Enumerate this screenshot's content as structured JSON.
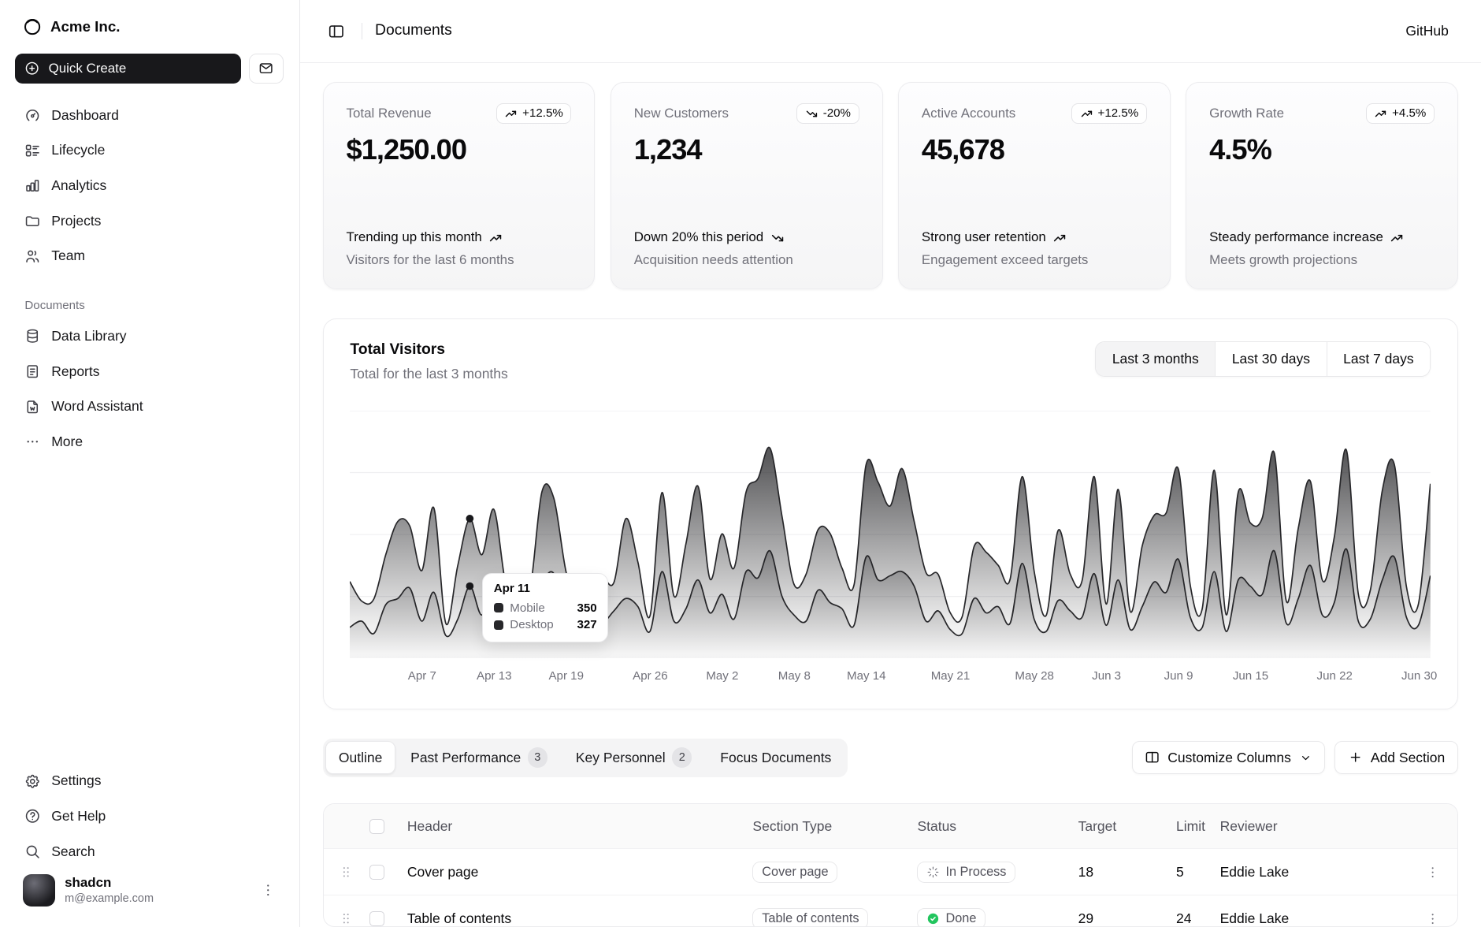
{
  "colors": {
    "primary": "#18181b",
    "done_green": "#22c55e",
    "muted_text": "#71717a",
    "border": "#e4e4e7"
  },
  "sidebar": {
    "brand": {
      "name": "Acme Inc.",
      "icon": "logo-icon"
    },
    "quick_create_label": "Quick Create",
    "nav": [
      {
        "label": "Dashboard",
        "icon": "dashboard-icon"
      },
      {
        "label": "Lifecycle",
        "icon": "lifecycle-icon"
      },
      {
        "label": "Analytics",
        "icon": "analytics-icon"
      },
      {
        "label": "Projects",
        "icon": "folder-icon"
      },
      {
        "label": "Team",
        "icon": "users-icon"
      }
    ],
    "section_label": "Documents",
    "documents_nav": [
      {
        "label": "Data Library",
        "icon": "database-icon"
      },
      {
        "label": "Reports",
        "icon": "report-icon"
      },
      {
        "label": "Word Assistant",
        "icon": "file-word-icon"
      },
      {
        "label": "More",
        "icon": "ellipsis-icon"
      }
    ],
    "footer_nav": [
      {
        "label": "Settings",
        "icon": "gear-icon"
      },
      {
        "label": "Get Help",
        "icon": "help-icon"
      },
      {
        "label": "Search",
        "icon": "search-icon"
      }
    ],
    "user": {
      "name": "shadcn",
      "email": "m@example.com"
    }
  },
  "header": {
    "title": "Documents",
    "link": "GitHub"
  },
  "stat_cards": [
    {
      "label": "Total Revenue",
      "badge": "+12.5%",
      "trend": "up",
      "value": "$1,250.00",
      "footer_title": "Trending up this month",
      "footer_desc": "Visitors for the last 6 months"
    },
    {
      "label": "New Customers",
      "badge": "-20%",
      "trend": "down",
      "value": "1,234",
      "footer_title": "Down 20% this period",
      "footer_desc": "Acquisition needs attention"
    },
    {
      "label": "Active Accounts",
      "badge": "+12.5%",
      "trend": "up",
      "value": "45,678",
      "footer_title": "Strong user retention",
      "footer_desc": "Engagement exceed targets"
    },
    {
      "label": "Growth Rate",
      "badge": "+4.5%",
      "trend": "up",
      "value": "4.5%",
      "footer_title": "Steady performance increase",
      "footer_desc": "Meets growth projections"
    }
  ],
  "chart": {
    "title": "Total Visitors",
    "subtitle": "Total for the last 3 months",
    "ranges": [
      "Last 3 months",
      "Last 30 days",
      "Last 7 days"
    ],
    "selected_range": "Last 3 months",
    "tooltip": {
      "date": "Apr 11",
      "rows": [
        {
          "label": "Mobile",
          "value": "350"
        },
        {
          "label": "Desktop",
          "value": "327"
        }
      ]
    }
  },
  "chart_data": {
    "type": "area",
    "title": "Total Visitors",
    "stacked": true,
    "curve": "natural",
    "grid": "horizontal-faint",
    "ylim": [
      0,
      1200
    ],
    "grid_values": [
      300,
      600,
      900,
      1200
    ],
    "x_tick_labels": [
      "Apr 7",
      "Apr 13",
      "Apr 19",
      "Apr 26",
      "May 2",
      "May 8",
      "May 14",
      "May 21",
      "May 28",
      "Jun 3",
      "Jun 9",
      "Jun 15",
      "Jun 22",
      "Jun 30"
    ],
    "x_tick_indices": [
      6,
      12,
      18,
      25,
      31,
      37,
      43,
      50,
      57,
      63,
      69,
      75,
      82,
      90
    ],
    "dates": [
      "2024-04-01",
      "2024-04-02",
      "2024-04-03",
      "2024-04-04",
      "2024-04-05",
      "2024-04-06",
      "2024-04-07",
      "2024-04-08",
      "2024-04-09",
      "2024-04-10",
      "2024-04-11",
      "2024-04-12",
      "2024-04-13",
      "2024-04-14",
      "2024-04-15",
      "2024-04-16",
      "2024-04-17",
      "2024-04-18",
      "2024-04-19",
      "2024-04-20",
      "2024-04-21",
      "2024-04-22",
      "2024-04-23",
      "2024-04-24",
      "2024-04-25",
      "2024-04-26",
      "2024-04-27",
      "2024-04-28",
      "2024-04-29",
      "2024-04-30",
      "2024-05-01",
      "2024-05-02",
      "2024-05-03",
      "2024-05-04",
      "2024-05-05",
      "2024-05-06",
      "2024-05-07",
      "2024-05-08",
      "2024-05-09",
      "2024-05-10",
      "2024-05-11",
      "2024-05-12",
      "2024-05-13",
      "2024-05-14",
      "2024-05-15",
      "2024-05-16",
      "2024-05-17",
      "2024-05-18",
      "2024-05-19",
      "2024-05-20",
      "2024-05-21",
      "2024-05-22",
      "2024-05-23",
      "2024-05-24",
      "2024-05-25",
      "2024-05-26",
      "2024-05-27",
      "2024-05-28",
      "2024-05-29",
      "2024-05-30",
      "2024-05-31",
      "2024-06-01",
      "2024-06-02",
      "2024-06-03",
      "2024-06-04",
      "2024-06-05",
      "2024-06-06",
      "2024-06-07",
      "2024-06-08",
      "2024-06-09",
      "2024-06-10",
      "2024-06-11",
      "2024-06-12",
      "2024-06-13",
      "2024-06-14",
      "2024-06-15",
      "2024-06-16",
      "2024-06-17",
      "2024-06-18",
      "2024-06-19",
      "2024-06-20",
      "2024-06-21",
      "2024-06-22",
      "2024-06-23",
      "2024-06-24",
      "2024-06-25",
      "2024-06-26",
      "2024-06-27",
      "2024-06-28",
      "2024-06-29",
      "2024-06-30"
    ],
    "series": [
      {
        "name": "Mobile",
        "values": [
          150,
          180,
          120,
          260,
          290,
          340,
          180,
          320,
          110,
          190,
          350,
          210,
          380,
          220,
          170,
          190,
          360,
          410,
          180,
          150,
          200,
          170,
          230,
          290,
          250,
          130,
          420,
          180,
          240,
          380,
          220,
          310,
          190,
          420,
          390,
          520,
          300,
          210,
          180,
          330,
          270,
          240,
          160,
          490,
          380,
          400,
          420,
          350,
          180,
          230,
          140,
          120,
          290,
          220,
          250,
          170,
          460,
          190,
          130,
          280,
          230,
          200,
          410,
          160,
          380,
          140,
          250,
          370,
          320,
          480,
          200,
          150,
          420,
          130,
          380,
          350,
          310,
          520,
          170,
          290,
          450,
          210,
          270,
          530,
          180,
          190,
          380,
          490,
          200,
          160,
          400
        ]
      },
      {
        "name": "Desktop",
        "values": [
          222,
          97,
          167,
          242,
          373,
          301,
          245,
          409,
          59,
          261,
          327,
          292,
          342,
          137,
          120,
          138,
          446,
          364,
          243,
          89,
          137,
          224,
          138,
          387,
          215,
          75,
          383,
          122,
          315,
          454,
          165,
          293,
          247,
          385,
          481,
          498,
          388,
          149,
          227,
          293,
          335,
          197,
          197,
          448,
          473,
          338,
          499,
          315,
          235,
          177,
          82,
          81,
          252,
          294,
          201,
          213,
          420,
          233,
          78,
          340,
          178,
          178,
          470,
          103,
          439,
          88,
          294,
          323,
          385,
          438,
          155,
          92,
          492,
          81,
          426,
          307,
          371,
          475,
          107,
          341,
          408,
          169,
          317,
          480,
          132,
          141,
          434,
          448,
          149,
          103,
          446
        ]
      }
    ],
    "highlight": {
      "index": 10,
      "date_label": "Apr 11",
      "mobile": 350,
      "desktop": 327
    }
  },
  "tabs": {
    "active": "Outline",
    "items": [
      {
        "label": "Outline"
      },
      {
        "label": "Past Performance",
        "badge": "3"
      },
      {
        "label": "Key Personnel",
        "badge": "2"
      },
      {
        "label": "Focus Documents"
      }
    ]
  },
  "toolbar": {
    "customize_columns_label": "Customize Columns",
    "add_section_label": "Add Section"
  },
  "table": {
    "columns": [
      "Header",
      "Section Type",
      "Status",
      "Target",
      "Limit",
      "Reviewer"
    ],
    "rows": [
      {
        "header": "Cover page",
        "section_type": "Cover page",
        "status": "In Process",
        "status_icon": "loader-icon",
        "target": "18",
        "limit": "5",
        "reviewer": "Eddie Lake"
      },
      {
        "header": "Table of contents",
        "section_type": "Table of contents",
        "status": "Done",
        "status_icon": "check-circle-icon",
        "target": "29",
        "limit": "24",
        "reviewer": "Eddie Lake"
      }
    ]
  }
}
